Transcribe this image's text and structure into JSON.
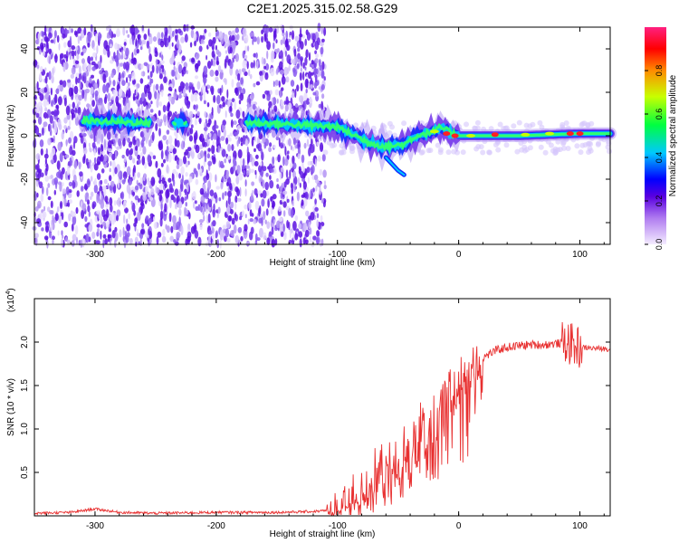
{
  "title": "C2E1.2025.315.02.58.G29",
  "chart_data": [
    {
      "type": "heatmap",
      "title": "",
      "xlabel": "Height of straight line (km)",
      "ylabel": "Frequency (Hz)",
      "xlim": [
        -350,
        125
      ],
      "ylim": [
        -50,
        50
      ],
      "xticks": [
        -300,
        -200,
        -100,
        0,
        100
      ],
      "yticks": [
        -40,
        -20,
        0,
        20,
        40
      ],
      "colorbar": {
        "label": "Normalized spectral amplitude",
        "range": [
          0,
          1
        ],
        "ticks": [
          0.0,
          0.2,
          0.4,
          0.6,
          0.8
        ]
      },
      "ridge": {
        "description_points_xy": [
          [
            -310,
            7
          ],
          [
            -260,
            6
          ],
          [
            -170,
            6
          ],
          [
            -130,
            5
          ],
          [
            -100,
            4
          ],
          [
            -85,
            0
          ],
          [
            -75,
            -3
          ],
          [
            -60,
            -5
          ],
          [
            -45,
            -4
          ],
          [
            -35,
            0
          ],
          [
            -20,
            2
          ],
          [
            -15,
            4
          ],
          [
            -5,
            1
          ],
          [
            0,
            0
          ],
          [
            50,
            0
          ],
          [
            100,
            1
          ],
          [
            125,
            1
          ]
        ],
        "weak_branch_xy": [
          [
            -60,
            -10
          ],
          [
            -50,
            -16
          ],
          [
            -45,
            -18
          ]
        ]
      }
    },
    {
      "type": "line",
      "title": "",
      "xlabel": "Height of straight line (km)",
      "ylabel": "SNR (10 * v/v)",
      "scale_note": "(x10",
      "scale_exponent": "4",
      "xlim": [
        -350,
        125
      ],
      "ylim": [
        0,
        2.5
      ],
      "xticks": [
        -300,
        -200,
        -100,
        0,
        100
      ],
      "yticks": [
        0.5,
        1.0,
        1.5,
        2.0
      ],
      "ytick_labels": [
        "0.5",
        "1.0",
        "1.5",
        "2.0"
      ],
      "color": "#e83030",
      "series": [
        {
          "name": "SNR",
          "x": [
            -350,
            -320,
            -300,
            -280,
            -250,
            -200,
            -150,
            -120,
            -100,
            -90,
            -80,
            -70,
            -60,
            -50,
            -40,
            -30,
            -20,
            -10,
            0,
            10,
            20,
            30,
            40,
            50,
            60,
            70,
            80,
            90,
            95,
            100,
            110,
            125
          ],
          "values": [
            0.03,
            0.04,
            0.08,
            0.04,
            0.03,
            0.04,
            0.04,
            0.05,
            0.07,
            0.15,
            0.28,
            0.4,
            0.5,
            0.6,
            0.75,
            0.95,
            1.1,
            1.35,
            1.55,
            1.7,
            1.82,
            1.9,
            1.94,
            1.96,
            1.97,
            1.97,
            1.98,
            2.0,
            1.95,
            1.94,
            1.93,
            1.92
          ]
        }
      ]
    }
  ]
}
